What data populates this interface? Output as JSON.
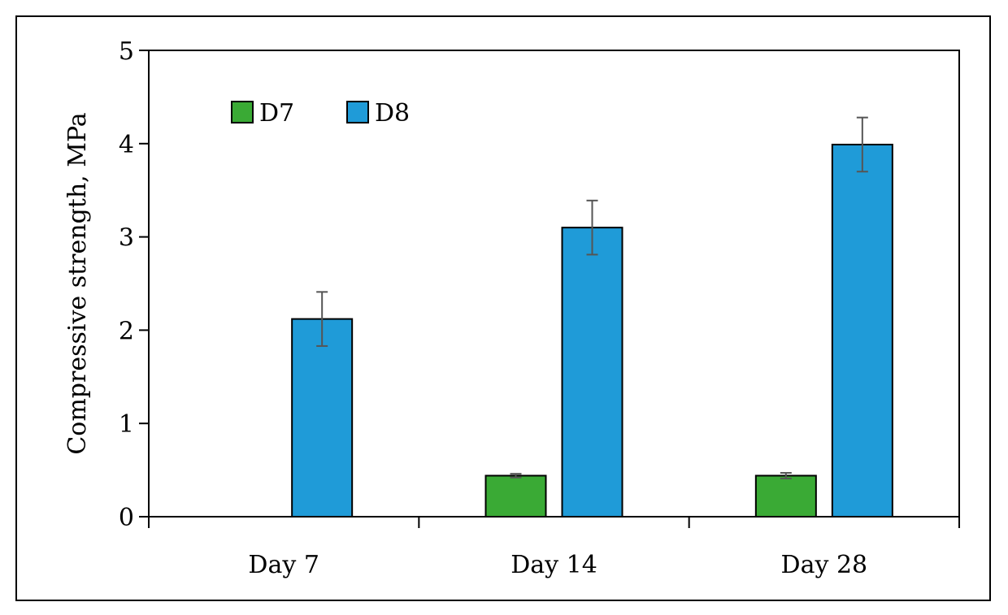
{
  "chart_data": {
    "type": "bar",
    "title": "",
    "xlabel": "",
    "ylabel": "Compressive strength, MPa",
    "ylim": [
      0,
      5
    ],
    "yticks": [
      "0",
      "1",
      "2",
      "3",
      "4",
      "5"
    ],
    "grid": false,
    "legend_position": "top-left",
    "categories": [
      "Day 7",
      "Day 14",
      "Day 28"
    ],
    "series": [
      {
        "name": "D7",
        "color": "#3aaa35",
        "values": [
          null,
          0.44,
          0.44
        ],
        "errors": [
          null,
          0.02,
          0.03
        ]
      },
      {
        "name": "D8",
        "color": "#1f9bd8",
        "values": [
          2.12,
          3.1,
          3.99
        ],
        "errors": [
          0.29,
          0.29,
          0.29
        ]
      }
    ]
  }
}
